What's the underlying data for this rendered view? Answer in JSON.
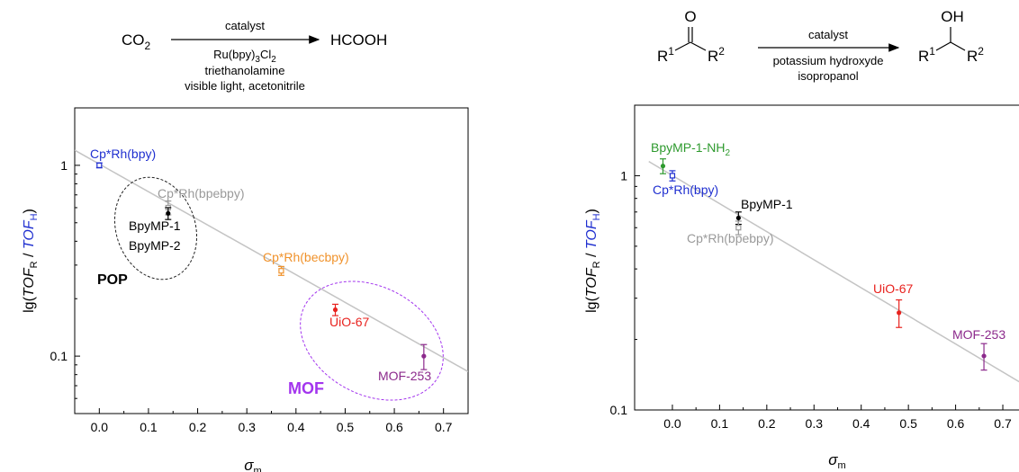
{
  "reactions": {
    "left": {
      "reactant": "CO",
      "reactant_sub": "2",
      "product": "HCOOH",
      "above_arrow": "catalyst",
      "below_1_main": "Ru(bpy)",
      "below_1_sub": "3",
      "below_1_tail": "Cl",
      "below_1_tail_sub": "2",
      "below_2": "triethanolamine",
      "below_3": "visible light, acetonitrile"
    },
    "right": {
      "ketone_o": "O",
      "r1": "R",
      "r1_sup": "1",
      "r2": "R",
      "r2_sup": "2",
      "above_arrow": "catalyst",
      "below_1": "potassium hydroxyde",
      "below_2": "isopropanol",
      "product_oh": "OH",
      "pr1": "R",
      "pr1_sup": "1",
      "pr2": "R",
      "pr2_sup": "2"
    }
  },
  "colors": {
    "blue": "#1f2fd0",
    "gray": "#9a9a9a",
    "black": "#000000",
    "orange": "#f0922b",
    "red": "#e8221e",
    "purple": "#8c2a8c",
    "green": "#2e9a2e",
    "violet": "#a335ee",
    "fit": "#c4c4c4"
  },
  "chart_data": [
    {
      "type": "scatter",
      "yscale": "log",
      "xlim": [
        -0.05,
        0.75
      ],
      "ylim": [
        0.05,
        2.0
      ],
      "xticks": [
        "0.0",
        "0.1",
        "0.2",
        "0.3",
        "0.4",
        "0.5",
        "0.6",
        "0.7"
      ],
      "yticks": [
        "1",
        "0.1"
      ],
      "xlabel": "σ",
      "xlabel_sub": "m",
      "ylabel_parts": [
        "lg(",
        "TOF",
        "R",
        " / ",
        "TOF",
        "H",
        ")"
      ],
      "fit_line": {
        "x": [
          -0.05,
          0.75
        ],
        "y": [
          1.2,
          0.083
        ]
      },
      "points": [
        {
          "label": "Cp*Rh(bpy)",
          "x": 0.0,
          "y": 1.0,
          "err": 0.03,
          "color": "blue",
          "marker": "open-square"
        },
        {
          "label": "Cp*Rh(bpebpy)",
          "x": 0.14,
          "y": 0.6,
          "err": 0.05,
          "color": "gray",
          "marker": "open-square"
        },
        {
          "label": "BpyMP-1",
          "x": 0.14,
          "y": 0.56,
          "err": 0.04,
          "color": "black",
          "marker": "dot"
        },
        {
          "label": "Cp*Rh(becbpy)",
          "x": 0.37,
          "y": 0.28,
          "err": 0.015,
          "color": "orange",
          "marker": "open-square"
        },
        {
          "label": "UiO-67",
          "x": 0.48,
          "y": 0.175,
          "err": 0.012,
          "color": "red",
          "marker": "dot"
        },
        {
          "label": "MOF-253",
          "x": 0.66,
          "y": 0.1,
          "err": 0.015,
          "color": "purple",
          "marker": "dot"
        }
      ],
      "extra_labels": [
        "BpyMP-2"
      ],
      "groups": [
        {
          "label": "POP",
          "color": "black"
        },
        {
          "label": "MOF",
          "color": "violet"
        }
      ]
    },
    {
      "type": "scatter",
      "yscale": "log",
      "xlim": [
        -0.08,
        0.74
      ],
      "ylim": [
        0.1,
        2.0
      ],
      "xticks": [
        "0.0",
        "0.1",
        "0.2",
        "0.3",
        "0.4",
        "0.5",
        "0.6",
        "0.7"
      ],
      "yticks": [
        "1",
        "0.1"
      ],
      "xlabel": "σ",
      "xlabel_sub": "m",
      "ylabel_parts": [
        "lg(",
        "TOF",
        "R",
        " / ",
        "TOF",
        "H",
        ")"
      ],
      "fit_line": {
        "x": [
          -0.05,
          0.74
        ],
        "y": [
          1.15,
          0.13
        ]
      },
      "points": [
        {
          "label": "BpyMP-1-NH",
          "label_sub": "2",
          "x": -0.02,
          "y": 1.1,
          "err": 0.08,
          "color": "green",
          "marker": "dot"
        },
        {
          "label": "Cp*Rh(bpy)",
          "x": 0.0,
          "y": 1.0,
          "err": 0.05,
          "color": "blue",
          "marker": "open-square"
        },
        {
          "label": "BpyMP-1",
          "x": 0.14,
          "y": 0.66,
          "err": 0.04,
          "color": "black",
          "marker": "dot"
        },
        {
          "label": "Cp*Rh(bpebpy)",
          "x": 0.14,
          "y": 0.6,
          "err": 0.04,
          "color": "gray",
          "marker": "open-square"
        },
        {
          "label": "UiO-67",
          "x": 0.48,
          "y": 0.26,
          "err": 0.035,
          "color": "red",
          "marker": "dot"
        },
        {
          "label": "MOF-253",
          "x": 0.66,
          "y": 0.17,
          "err": 0.022,
          "color": "purple",
          "marker": "dot"
        }
      ]
    }
  ]
}
